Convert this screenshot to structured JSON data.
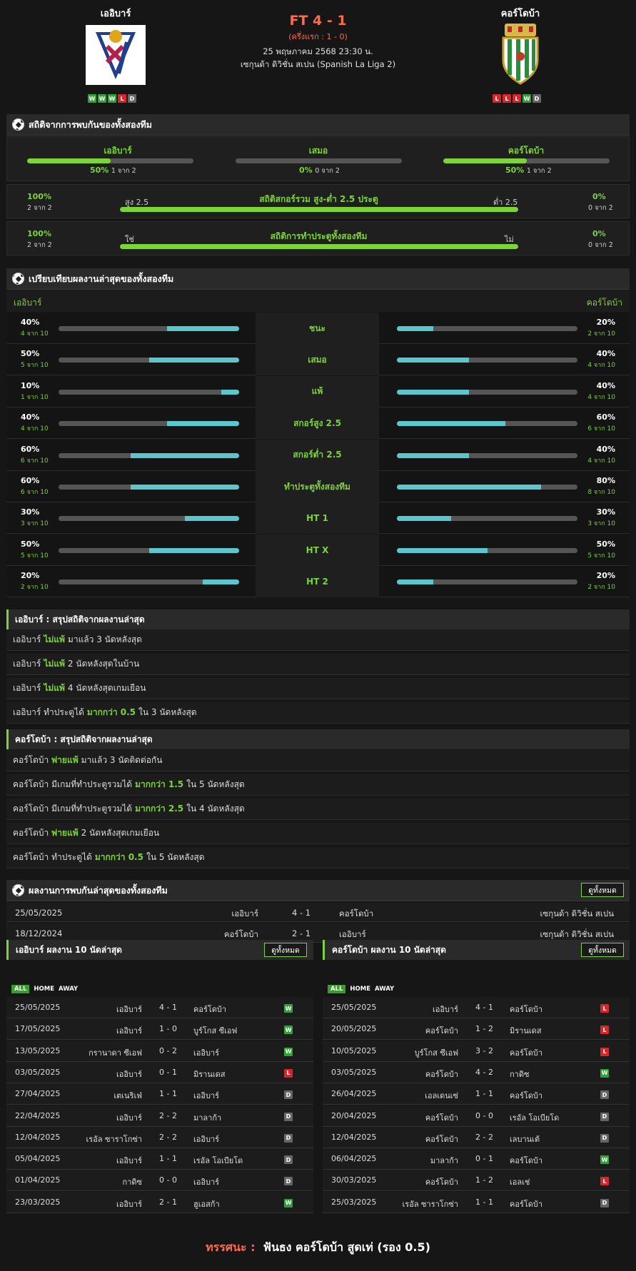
{
  "header": {
    "home_name": "เออิบาร์",
    "away_name": "คอร์โดบ้า",
    "score": "FT 4 - 1",
    "halftime": "(ครึ่งแรก : 1 - 0)",
    "date": "25 พฤษภาคม 2568 23:30 น.",
    "league": "เซกุนด้า ดิวิชั่น สเปน (Spanish La Liga 2)",
    "home_form": [
      "W",
      "W",
      "W",
      "L",
      "D"
    ],
    "away_form": [
      "L",
      "L",
      "L",
      "W",
      "D"
    ]
  },
  "h2h_stats": {
    "title": "สถิติจากการพบกันของทั้งสองทีม",
    "cols": [
      {
        "label": "เออิบาร์",
        "pct": "50%",
        "sub": "1 จาก 2",
        "value": 0.5
      },
      {
        "label": "เสมอ",
        "pct": "0%",
        "sub": "0 จาก 2",
        "value": 0
      },
      {
        "label": "คอร์โดบ้า",
        "pct": "50%",
        "sub": "1 จาก 2",
        "value": 0.5
      }
    ],
    "ou": {
      "title": "สถิติสกอร์รวม สูง-ต่ำ 2.5 ประตู",
      "left_label": "สูง 2.5",
      "right_label": "ต่ำ 2.5",
      "left_pct": "100%",
      "left_sub": "2 จาก 2",
      "right_pct": "0%",
      "right_sub": "0 จาก 2",
      "value": 1.0
    },
    "btts": {
      "title": "สถิติการทำประตูทั้งสองทีม",
      "left_label": "ใช่",
      "right_label": "ไม่",
      "left_pct": "100%",
      "left_sub": "2 จาก 2",
      "right_pct": "0%",
      "right_sub": "0 จาก 2",
      "value": 1.0
    }
  },
  "compare": {
    "title": "เปรียบเทียบผลงานล่าสุดของทั้งสองทีม",
    "home": "เออิบาร์",
    "away": "คอร์โดบ้า",
    "rows": [
      {
        "label": "ชนะ",
        "hp": "40%",
        "hs": "4 จาก 10",
        "hv": 0.4,
        "ap": "20%",
        "as": "2 จาก 10",
        "av": 0.2
      },
      {
        "label": "เสมอ",
        "hp": "50%",
        "hs": "5 จาก 10",
        "hv": 0.5,
        "ap": "40%",
        "as": "4 จาก 10",
        "av": 0.4
      },
      {
        "label": "แพ้",
        "hp": "10%",
        "hs": "1 จาก 10",
        "hv": 0.1,
        "ap": "40%",
        "as": "4 จาก 10",
        "av": 0.4
      },
      {
        "label": "สกอร์สูง 2.5",
        "hp": "40%",
        "hs": "4 จาก 10",
        "hv": 0.4,
        "ap": "60%",
        "as": "6 จาก 10",
        "av": 0.6
      },
      {
        "label": "สกอร์ต่ำ 2.5",
        "hp": "60%",
        "hs": "6 จาก 10",
        "hv": 0.6,
        "ap": "40%",
        "as": "4 จาก 10",
        "av": 0.4
      },
      {
        "label": "ทำประตูทั้งสองทีม",
        "hp": "60%",
        "hs": "6 จาก 10",
        "hv": 0.6,
        "ap": "80%",
        "as": "8 จาก 10",
        "av": 0.8
      },
      {
        "label": "HT 1",
        "hp": "30%",
        "hs": "3 จาก 10",
        "hv": 0.3,
        "ap": "30%",
        "as": "3 จาก 10",
        "av": 0.3
      },
      {
        "label": "HT X",
        "hp": "50%",
        "hs": "5 จาก 10",
        "hv": 0.5,
        "ap": "50%",
        "as": "5 จาก 10",
        "av": 0.5
      },
      {
        "label": "HT 2",
        "hp": "20%",
        "hs": "2 จาก 10",
        "hv": 0.2,
        "ap": "20%",
        "as": "2 จาก 10",
        "av": 0.2
      }
    ]
  },
  "home_summary": {
    "title": "เออิบาร์ : สรุปสถิติจากผลงานล่าสุด",
    "rows": [
      {
        "a": "เออิบาร์",
        "b": "ไม่แพ้",
        "c": "มาแล้ว 3 นัดหลังสุด"
      },
      {
        "a": "เออิบาร์",
        "b": "ไม่แพ้",
        "c": "2 นัดหลังสุดในบ้าน"
      },
      {
        "a": "เออิบาร์",
        "b": "ไม่แพ้",
        "c": "4 นัดหลังสุดเกมเยือน"
      },
      {
        "a": "เออิบาร์ ทำประตูได้",
        "b": "มากกว่า 0.5",
        "c": "ใน 3 นัดหลังสุด"
      }
    ]
  },
  "away_summary": {
    "title": "คอร์โดบ้า : สรุปสถิติจากผลงานล่าสุด",
    "rows": [
      {
        "a": "คอร์โดบ้า",
        "b": "พ่ายแพ้",
        "c": "มาแล้ว 3 นัดติดต่อกัน"
      },
      {
        "a": "คอร์โดบ้า มีเกมที่ทำประตูรวมได้",
        "b": "มากกว่า 1.5",
        "c": "ใน 5 นัดหลังสุด"
      },
      {
        "a": "คอร์โดบ้า มีเกมที่ทำประตูรวมได้",
        "b": "มากกว่า 2.5",
        "c": "ใน 4 นัดหลังสุด"
      },
      {
        "a": "คอร์โดบ้า",
        "b": "พ่ายแพ้",
        "c": "2 นัดหลังสุดเกมเยือน"
      },
      {
        "a": "คอร์โดบ้า ทำประตูได้",
        "b": "มากกว่า 0.5",
        "c": "ใน 5 นัดหลังสุด"
      }
    ]
  },
  "h2h": {
    "title": "ผลงานการพบกันล่าสุดของทั้งสองทีม",
    "view_all": "ดูทั้งหมด",
    "rows": [
      {
        "date": "25/05/2025",
        "home": "เออิบาร์",
        "score": "4 - 1",
        "away": "คอร์โดบ้า",
        "league": "เซกุนด้า ดิวิชั่น สเปน"
      },
      {
        "date": "18/12/2024",
        "home": "คอร์โดบ้า",
        "score": "2 - 1",
        "away": "เออิบาร์",
        "league": "เซกุนด้า ดิวิชั่น สเปน"
      }
    ]
  },
  "home_last10": {
    "title": "เออิบาร์ ผลงาน 10 นัดล่าสุด",
    "view_all": "ดูทั้งหมด",
    "tabs": [
      "ALL",
      "HOME",
      "AWAY"
    ],
    "rows": [
      {
        "date": "25/05/2025",
        "home": "เออิบาร์",
        "score": "4 - 1",
        "away": "คอร์โดบ้า",
        "r": "W"
      },
      {
        "date": "17/05/2025",
        "home": "เออิบาร์",
        "score": "1 - 0",
        "away": "บูร์โกส ซีเอฟ",
        "r": "W"
      },
      {
        "date": "13/05/2025",
        "home": "กรานาดา ซีเอฟ",
        "score": "0 - 2",
        "away": "เออิบาร์",
        "r": "W"
      },
      {
        "date": "03/05/2025",
        "home": "เออิบาร์",
        "score": "0 - 1",
        "away": "มิรานเดส",
        "r": "L"
      },
      {
        "date": "27/04/2025",
        "home": "เตเนริเฟ่",
        "score": "1 - 1",
        "away": "เออิบาร์",
        "r": "D"
      },
      {
        "date": "22/04/2025",
        "home": "เออิบาร์",
        "score": "2 - 2",
        "away": "มาลาก้า",
        "r": "D"
      },
      {
        "date": "12/04/2025",
        "home": "เรอัล ซาราโกซ่า",
        "score": "2 - 2",
        "away": "เออิบาร์",
        "r": "D"
      },
      {
        "date": "05/04/2025",
        "home": "เออิบาร์",
        "score": "1 - 1",
        "away": "เรอัล โอเบียโด",
        "r": "D"
      },
      {
        "date": "01/04/2025",
        "home": "กาดิซ",
        "score": "0 - 0",
        "away": "เออิบาร์",
        "r": "D"
      },
      {
        "date": "23/03/2025",
        "home": "เออิบาร์",
        "score": "2 - 1",
        "away": "ฮูเอสก้า",
        "r": "W"
      }
    ]
  },
  "away_last10": {
    "title": "คอร์โดบ้า ผลงาน 10 นัดล่าสุด",
    "view_all": "ดูทั้งหมด",
    "tabs": [
      "ALL",
      "HOME",
      "AWAY"
    ],
    "rows": [
      {
        "date": "25/05/2025",
        "home": "เออิบาร์",
        "score": "4 - 1",
        "away": "คอร์โดบ้า",
        "r": "L"
      },
      {
        "date": "20/05/2025",
        "home": "คอร์โดบ้า",
        "score": "1 - 2",
        "away": "มิรานเดส",
        "r": "L"
      },
      {
        "date": "10/05/2025",
        "home": "บูร์โกส ซีเอฟ",
        "score": "3 - 2",
        "away": "คอร์โดบ้า",
        "r": "L"
      },
      {
        "date": "03/05/2025",
        "home": "คอร์โดบ้า",
        "score": "4 - 2",
        "away": "กาดิซ",
        "r": "W"
      },
      {
        "date": "26/04/2025",
        "home": "เอลเดนเซ่",
        "score": "1 - 1",
        "away": "คอร์โดบ้า",
        "r": "D"
      },
      {
        "date": "20/04/2025",
        "home": "คอร์โดบ้า",
        "score": "0 - 0",
        "away": "เรอัล โอเบียโด",
        "r": "D"
      },
      {
        "date": "12/04/2025",
        "home": "คอร์โดบ้า",
        "score": "2 - 2",
        "away": "เลบานเต้",
        "r": "D"
      },
      {
        "date": "06/04/2025",
        "home": "มาลาก้า",
        "score": "0 - 1",
        "away": "คอร์โดบ้า",
        "r": "W"
      },
      {
        "date": "30/03/2025",
        "home": "คอร์โดบ้า",
        "score": "1 - 2",
        "away": "เอลเช่",
        "r": "L"
      },
      {
        "date": "25/03/2025",
        "home": "เรอัล ซาราโกซ่า",
        "score": "1 - 1",
        "away": "คอร์โดบ้า",
        "r": "D"
      }
    ]
  },
  "verdict": {
    "label": "ทรรศนะ :",
    "text": "ฟันธง คอร์โดบ้า สูดเท่ (รอง 0.5)"
  },
  "colors": {
    "accent": "#7dd33a",
    "score": "#ff6a4d",
    "bar_cyan": "#5cc6cc",
    "win": "#2fa336",
    "loss": "#d6262b",
    "draw": "#666666"
  }
}
